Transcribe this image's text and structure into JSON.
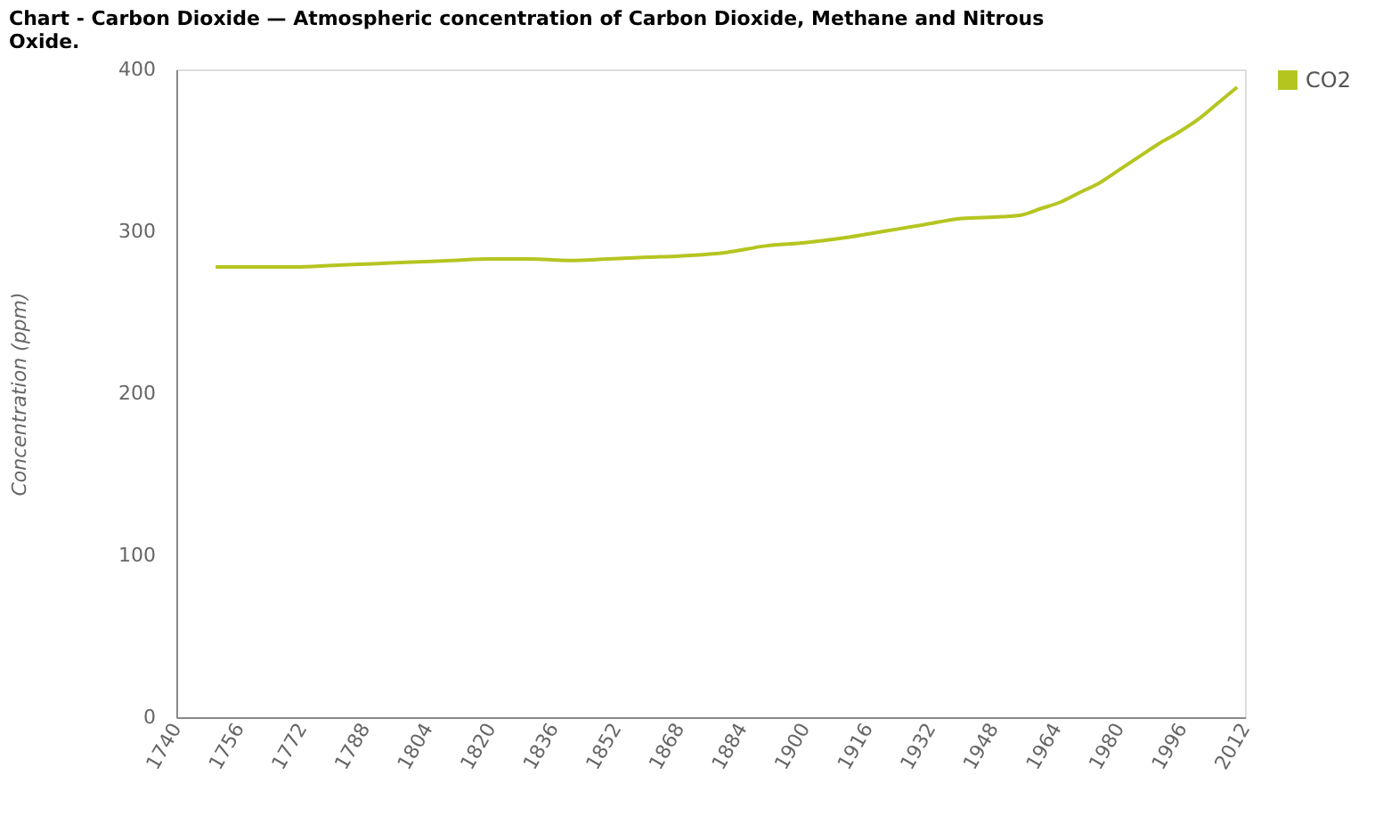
{
  "chart_data": {
    "type": "line",
    "title": "Chart - Carbon Dioxide — Atmospheric concentration of Carbon Dioxide, Methane and Nitrous Oxide.",
    "ylabel": "Concentration (ppm)",
    "x": [
      1750,
      1760,
      1770,
      1780,
      1790,
      1800,
      1810,
      1820,
      1830,
      1840,
      1850,
      1860,
      1870,
      1880,
      1890,
      1900,
      1910,
      1920,
      1930,
      1940,
      1950,
      1955,
      1960,
      1965,
      1970,
      1975,
      1980,
      1985,
      1990,
      1995,
      2000,
      2005,
      2010
    ],
    "series": [
      {
        "name": "CO2",
        "color": "#b5c520",
        "values": [
          278,
          278,
          278,
          279,
          280,
          281,
          282,
          283,
          283,
          282,
          283,
          284,
          285,
          287,
          291,
          293,
          296,
          300,
          304,
          308,
          309,
          310,
          314,
          318,
          324,
          330,
          338,
          346,
          354,
          361,
          369,
          379,
          389
        ]
      }
    ],
    "xlim": [
      1740,
      2012
    ],
    "xticks": [
      1740,
      1756,
      1772,
      1788,
      1804,
      1820,
      1836,
      1852,
      1868,
      1884,
      1900,
      1916,
      1932,
      1948,
      1964,
      1980,
      1996,
      2012
    ],
    "ylim": [
      0,
      400
    ],
    "yticks": [
      0,
      100,
      200,
      300,
      400
    ],
    "grid": false,
    "legend": "top right",
    "marker": "none",
    "line_style": "solid"
  }
}
